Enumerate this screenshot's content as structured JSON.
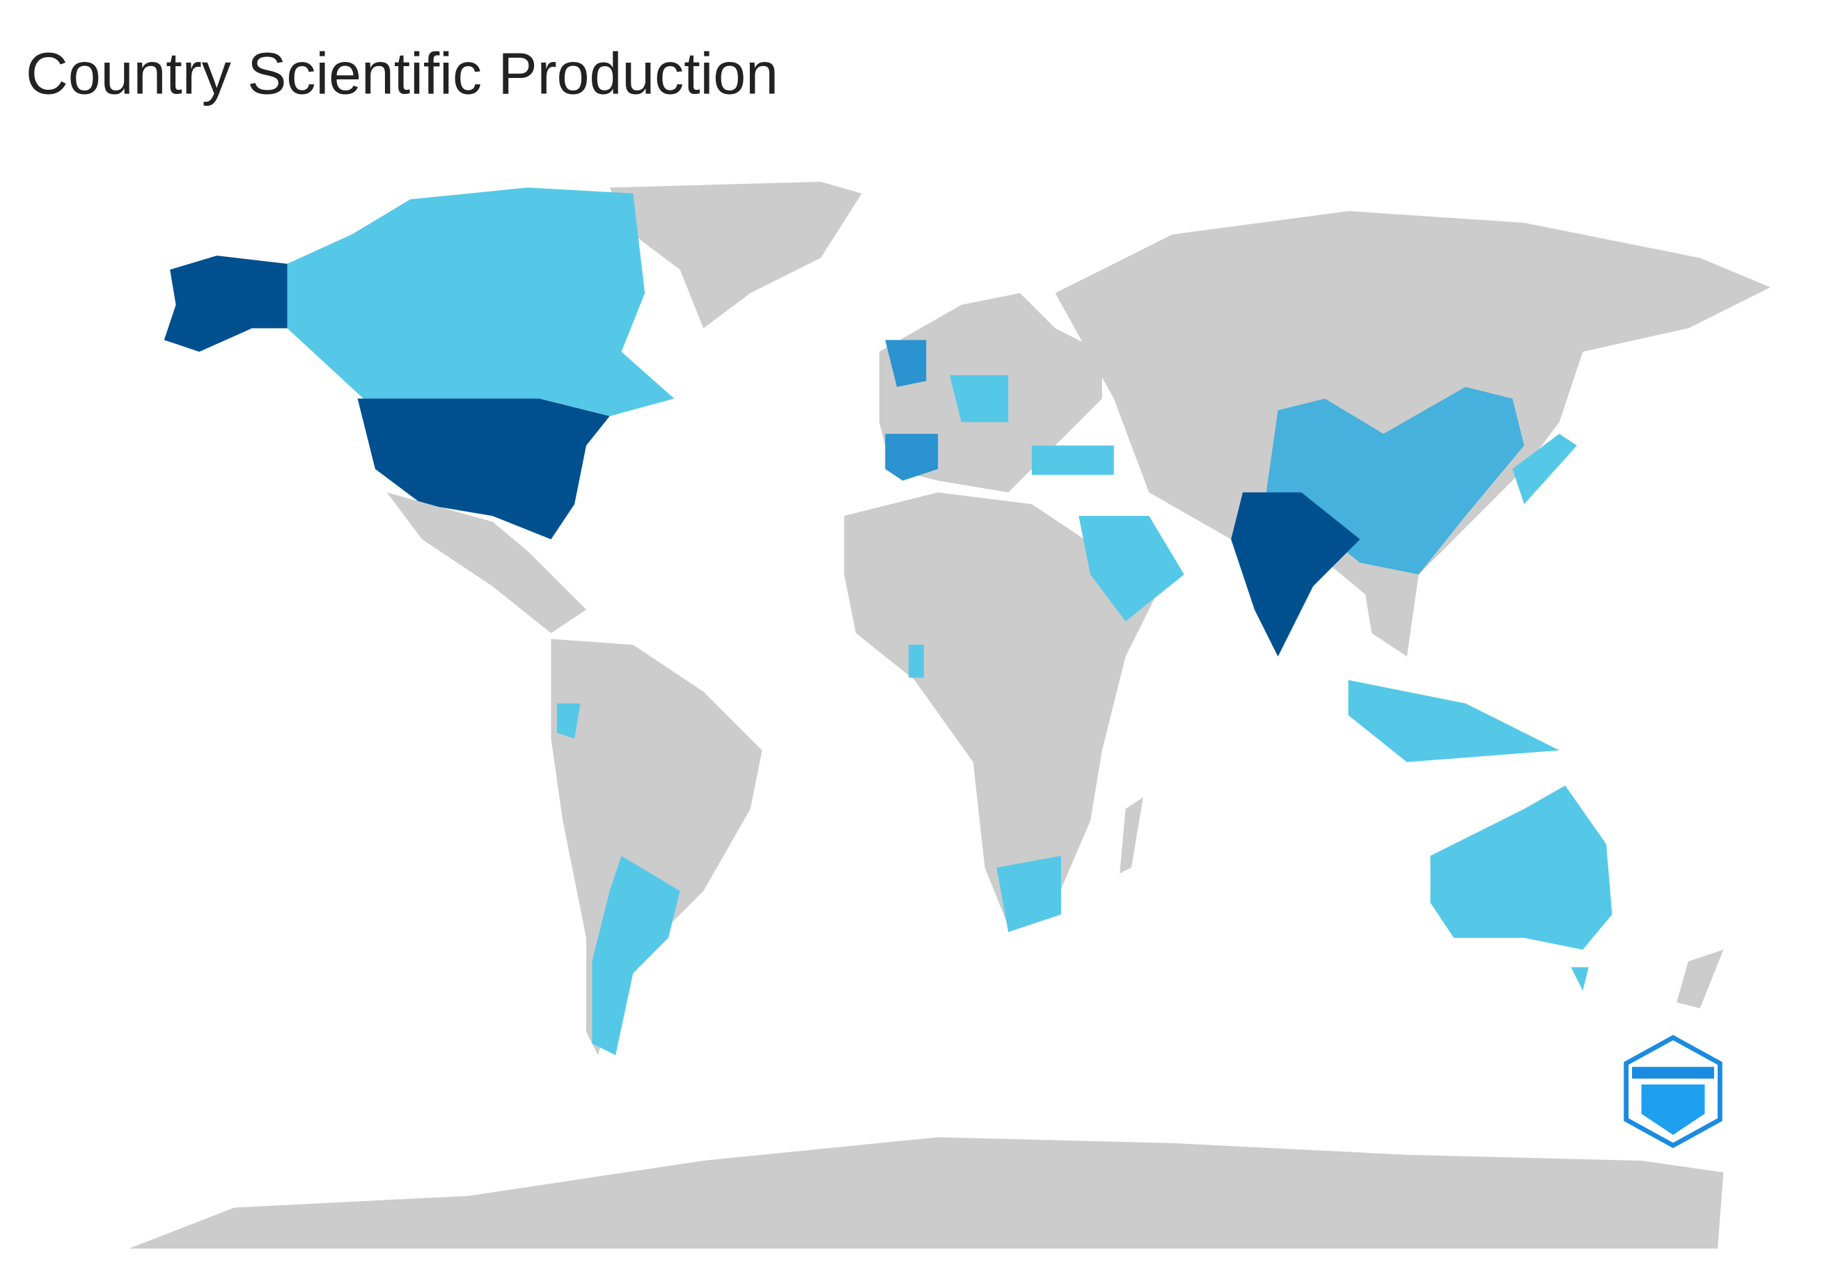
{
  "title": "Country Scientific Production"
}
